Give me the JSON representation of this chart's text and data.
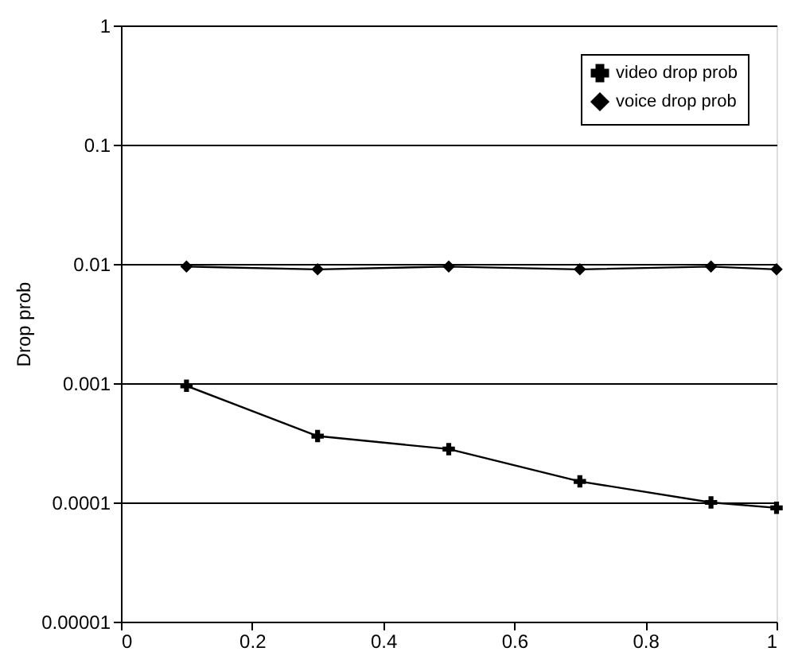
{
  "chart_data": {
    "type": "line",
    "ylabel": "Drop prob",
    "log": "y",
    "grid": "y",
    "legend": "top right",
    "line_style": "solid",
    "x": [
      0.1,
      0.3,
      0.5,
      0.7,
      0.9,
      1.0
    ],
    "xlim": [
      0,
      1
    ],
    "xticks": [
      0,
      0.2,
      0.4,
      0.6,
      0.8,
      1
    ],
    "ylim": [
      1e-05,
      1
    ],
    "yticks": [
      {
        "value": 1e-05,
        "label": "0.00001"
      },
      0.0001,
      0.001,
      0.01,
      0.1,
      1
    ],
    "series": [
      {
        "name": "video drop prob",
        "color": "#000000",
        "marker": "cross",
        "values": [
          0.00095,
          0.00036,
          0.00028,
          0.00015,
          0.0001,
          9e-05
        ]
      },
      {
        "name": "voice drop prob",
        "color": "#000000",
        "marker": "diamond",
        "values": [
          0.0095,
          0.009,
          0.0095,
          0.009,
          0.0095,
          0.009
        ]
      }
    ]
  }
}
